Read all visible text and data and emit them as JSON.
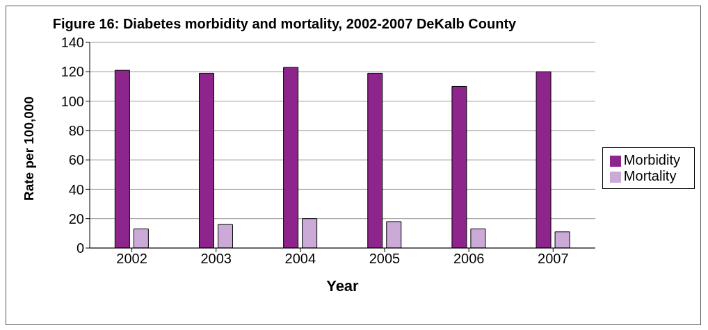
{
  "chart_data": {
    "type": "bar",
    "title": "Figure 16: Diabetes morbidity and mortality, 2002-2007 DeKalb County",
    "xlabel": "Year",
    "ylabel": "Rate per 100,000",
    "categories": [
      "2002",
      "2003",
      "2004",
      "2005",
      "2006",
      "2007"
    ],
    "series": [
      {
        "name": "Morbidity",
        "color": "#8e258d",
        "values": [
          121,
          119,
          123,
          119,
          110,
          120
        ]
      },
      {
        "name": "Mortality",
        "color": "#cbaad8",
        "values": [
          13,
          16,
          20,
          18,
          13,
          11
        ]
      }
    ],
    "ylim": [
      0,
      140
    ],
    "yticks": [
      0,
      20,
      40,
      60,
      80,
      100,
      120,
      140
    ],
    "grid": "y",
    "legend": "right"
  }
}
